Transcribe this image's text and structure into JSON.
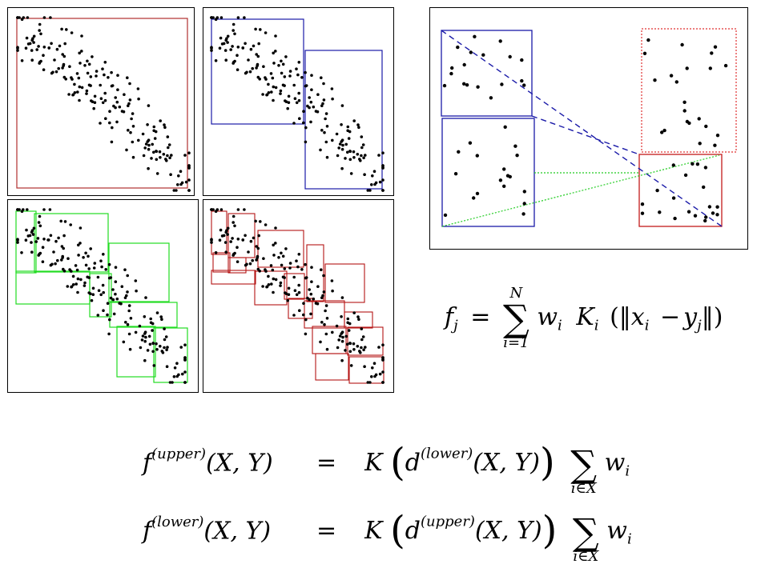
{
  "colors": {
    "level0": "#b03030",
    "level1": "#1a1aa8",
    "level2": "#22dd22",
    "level3": "#b51515",
    "points": "#000000",
    "frame": "#000000"
  },
  "panels": [
    {
      "name": "level-0-cluster",
      "box_color": "level0",
      "box_style": "solid"
    },
    {
      "name": "level-1-clusters",
      "box_color": "level1",
      "box_style": "solid"
    },
    {
      "name": "level-2-clusters",
      "box_color": "level2",
      "box_style": "solid"
    },
    {
      "name": "level-3-clusters",
      "box_color": "level3",
      "box_style": "solid"
    },
    {
      "name": "cluster-pair-interaction",
      "box_color": "level1",
      "box_style": "dashed"
    }
  ],
  "formula_main": {
    "lhs": "f",
    "lhs_sub": "j",
    "eq": "=",
    "sum_upper": "N",
    "sum_lower": "i=1",
    "weight": "w",
    "weight_sub": "i",
    "kernel": "K",
    "kernel_sub": "i",
    "arg_x": "x",
    "arg_x_sub": "i",
    "minus": "−",
    "arg_y": "y",
    "arg_y_sub": "j",
    "open": "(‖",
    "close": "‖)"
  },
  "formula_upper": {
    "lhs": "f",
    "lhs_sup": "(upper)",
    "args": "(X, Y)",
    "eq": "=",
    "kernel": "K",
    "d": "d",
    "d_sup": "(lower)",
    "d_args": "(X, Y)",
    "sum_lower": "i∈X",
    "weight": "w",
    "weight_sub": "i"
  },
  "formula_lower": {
    "lhs": "f",
    "lhs_sup": "(lower)",
    "args": "(X, Y)",
    "eq": "=",
    "kernel": "K",
    "d": "d",
    "d_sup": "(upper)",
    "d_args": "(X, Y)",
    "sum_lower": "i∈X",
    "weight": "w",
    "weight_sub": "i"
  }
}
